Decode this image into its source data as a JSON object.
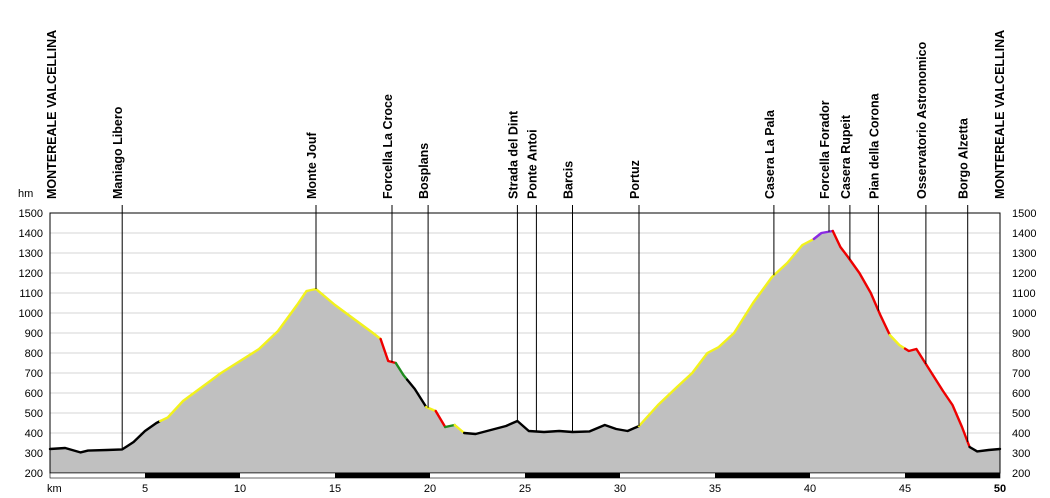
{
  "chart_data": {
    "type": "area",
    "xlabel": "km",
    "ylabel": "hm",
    "xlim": [
      0,
      50
    ],
    "ylim": [
      200,
      1500
    ],
    "x_ticks": [
      5,
      10,
      15,
      20,
      25,
      30,
      35,
      40,
      45,
      50
    ],
    "y_ticks": [
      200,
      300,
      400,
      500,
      600,
      700,
      800,
      900,
      1000,
      1100,
      1200,
      1300,
      1400,
      1500
    ],
    "x_tick_labels": [
      "5",
      "10",
      "15",
      "20",
      "25",
      "30",
      "35",
      "40",
      "45",
      "50"
    ],
    "y_tick_labels": [
      "200",
      "300",
      "400",
      "500",
      "600",
      "700",
      "800",
      "900",
      "1000",
      "1100",
      "1200",
      "1300",
      "1400",
      "1500"
    ],
    "grid": true,
    "fill_color": "#c0c0c0",
    "segment_colors": {
      "black": "#000000",
      "yellow": "#f2f21c",
      "red": "#ee0000",
      "green": "#1e8c1e",
      "purple": "#8a2be2"
    },
    "profile": [
      [
        0,
        320
      ],
      [
        0.8,
        325
      ],
      [
        1.6,
        303
      ],
      [
        2.0,
        312
      ],
      [
        3.0,
        315
      ],
      [
        3.8,
        318
      ],
      [
        4.4,
        355
      ],
      [
        5.0,
        410
      ],
      [
        5.6,
        450
      ],
      [
        6.2,
        478
      ],
      [
        7.0,
        560
      ],
      [
        8.0,
        630
      ],
      [
        9.0,
        700
      ],
      [
        10.0,
        760
      ],
      [
        11.0,
        820
      ],
      [
        12.0,
        910
      ],
      [
        13.0,
        1040
      ],
      [
        13.5,
        1110
      ],
      [
        14.0,
        1120
      ],
      [
        15.0,
        1040
      ],
      [
        16.0,
        970
      ],
      [
        17.0,
        900
      ],
      [
        17.4,
        870
      ],
      [
        17.8,
        760
      ],
      [
        18.2,
        750
      ],
      [
        18.6,
        690
      ],
      [
        19.2,
        620
      ],
      [
        19.8,
        530
      ],
      [
        20.3,
        510
      ],
      [
        20.8,
        430
      ],
      [
        21.3,
        440
      ],
      [
        21.8,
        400
      ],
      [
        22.4,
        395
      ],
      [
        23.0,
        410
      ],
      [
        24.0,
        435
      ],
      [
        24.6,
        460
      ],
      [
        25.2,
        410
      ],
      [
        26.0,
        405
      ],
      [
        26.8,
        410
      ],
      [
        27.5,
        405
      ],
      [
        28.4,
        408
      ],
      [
        29.2,
        440
      ],
      [
        29.8,
        420
      ],
      [
        30.4,
        410
      ],
      [
        31.0,
        435
      ],
      [
        32.0,
        540
      ],
      [
        33.0,
        630
      ],
      [
        33.8,
        700
      ],
      [
        34.6,
        800
      ],
      [
        35.2,
        830
      ],
      [
        36.0,
        900
      ],
      [
        37.0,
        1050
      ],
      [
        38.0,
        1180
      ],
      [
        38.8,
        1250
      ],
      [
        39.6,
        1340
      ],
      [
        40.2,
        1370
      ],
      [
        40.6,
        1400
      ],
      [
        41.2,
        1410
      ],
      [
        41.6,
        1330
      ],
      [
        42.0,
        1280
      ],
      [
        42.6,
        1200
      ],
      [
        43.2,
        1100
      ],
      [
        43.7,
        990
      ],
      [
        44.2,
        890
      ],
      [
        44.7,
        840
      ],
      [
        45.2,
        810
      ],
      [
        45.6,
        820
      ],
      [
        46.2,
        730
      ],
      [
        47.0,
        610
      ],
      [
        47.5,
        540
      ],
      [
        48.0,
        430
      ],
      [
        48.4,
        330
      ],
      [
        48.8,
        308
      ],
      [
        49.4,
        315
      ],
      [
        50.0,
        320
      ]
    ],
    "segments": [
      {
        "from": 0,
        "to": 5.8,
        "color": "black"
      },
      {
        "from": 5.8,
        "to": 17.4,
        "color": "yellow"
      },
      {
        "from": 17.4,
        "to": 18.2,
        "color": "red"
      },
      {
        "from": 18.2,
        "to": 18.8,
        "color": "green"
      },
      {
        "from": 18.8,
        "to": 19.8,
        "color": "black"
      },
      {
        "from": 19.8,
        "to": 20.3,
        "color": "yellow"
      },
      {
        "from": 20.3,
        "to": 20.8,
        "color": "red"
      },
      {
        "from": 20.8,
        "to": 21.3,
        "color": "green"
      },
      {
        "from": 21.3,
        "to": 21.8,
        "color": "yellow"
      },
      {
        "from": 21.8,
        "to": 31.0,
        "color": "black"
      },
      {
        "from": 31.0,
        "to": 40.2,
        "color": "yellow"
      },
      {
        "from": 40.2,
        "to": 41.2,
        "color": "purple"
      },
      {
        "from": 41.2,
        "to": 44.2,
        "color": "red"
      },
      {
        "from": 44.2,
        "to": 45.0,
        "color": "yellow"
      },
      {
        "from": 45.0,
        "to": 48.4,
        "color": "red"
      },
      {
        "from": 48.4,
        "to": 50.0,
        "color": "black"
      }
    ],
    "waypoints": [
      {
        "name": "MONTEREALE VALCELLINA",
        "km": 0
      },
      {
        "name": "Maniago Libero",
        "km": 3.8
      },
      {
        "name": "Monte Jouf",
        "km": 14.0
      },
      {
        "name": "Forcella La Croce",
        "km": 18.0
      },
      {
        "name": "Bosplans",
        "km": 19.9
      },
      {
        "name": "Strada del Dint",
        "km": 24.6
      },
      {
        "name": "Ponte Antoi",
        "km": 25.6
      },
      {
        "name": "Barcis",
        "km": 27.5
      },
      {
        "name": "Portuz",
        "km": 31.0
      },
      {
        "name": "Casera La Pala",
        "km": 38.1
      },
      {
        "name": "Forcella Forador",
        "km": 41.0
      },
      {
        "name": "Casera Rupeit",
        "km": 42.1
      },
      {
        "name": "Pian della Corona",
        "km": 43.6
      },
      {
        "name": "Osservatorio Astronomico",
        "km": 46.1
      },
      {
        "name": "Borgo Alzetta",
        "km": 48.3
      },
      {
        "name": "MONTEREALE VALCELLINA",
        "km": 50
      }
    ]
  }
}
